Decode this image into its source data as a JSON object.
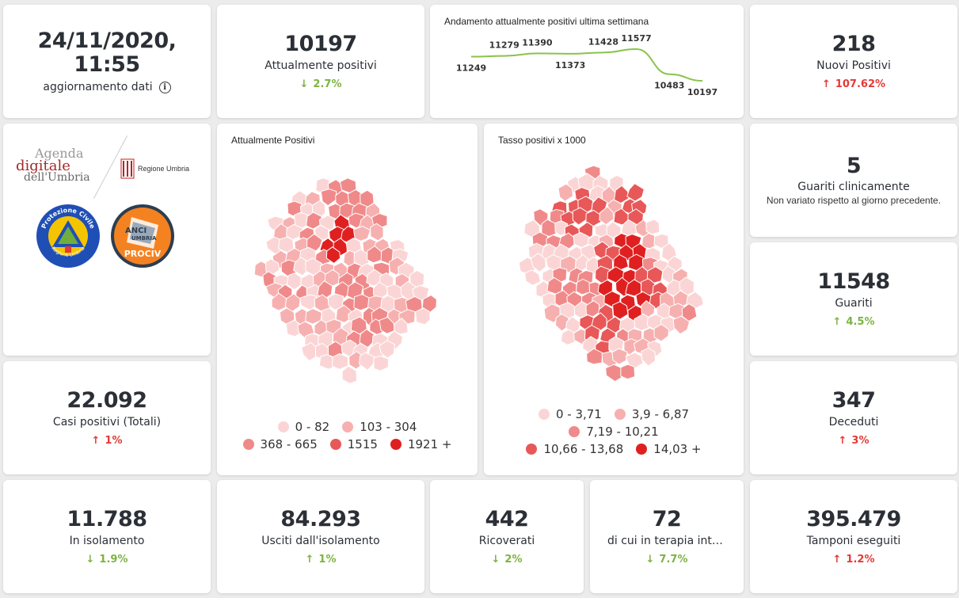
{
  "header": {
    "datetime": "24/11/2020, 11:55",
    "update_label": "aggiornamento dati"
  },
  "positivi": {
    "value": "10197",
    "label": "Attualmente positivi",
    "trend": "2.7%"
  },
  "andamento": {
    "title": "Andamento attualmente positivi ultima settimana",
    "chart_data": {
      "type": "line",
      "x": [
        1,
        2,
        3,
        4,
        5,
        6,
        7,
        8
      ],
      "values": [
        11249,
        11279,
        11390,
        11373,
        11428,
        11577,
        10483,
        10197
      ],
      "labels": [
        "11249",
        "11279",
        "11390",
        "11373",
        "11428",
        "11577",
        "10483",
        "10197"
      ],
      "color": "#8bc34a"
    }
  },
  "nuovi": {
    "value": "218",
    "label": "Nuovi Positivi",
    "trend": "107.62%"
  },
  "logos": {
    "agenda_line1": "Agenda",
    "agenda_line2": "digitale",
    "agenda_line3": "dell'Umbria",
    "regione": "Regione Umbria",
    "protezione_top": "Protezione Civile",
    "protezione_bottom": "Regione Umbria",
    "anci_line1": "ANCI",
    "anci_line2": "UMBRIA",
    "anci_line3": "PROCIV"
  },
  "map1": {
    "title": "Attualmente Positivi",
    "legend": [
      {
        "label": "0 - 82",
        "color": "#fbd5d5"
      },
      {
        "label": "103 - 304",
        "color": "#f7b0b0"
      },
      {
        "label": "368 - 665",
        "color": "#f08a8a"
      },
      {
        "label": "1515",
        "color": "#e85858"
      },
      {
        "label": "1921 +",
        "color": "#e02020"
      }
    ]
  },
  "map2": {
    "title": "Tasso positivi x 1000",
    "legend": [
      {
        "label": "0 - 3,71",
        "color": "#fbd5d5"
      },
      {
        "label": "3,9 - 6,87",
        "color": "#f7b0b0"
      },
      {
        "label": "7,19 - 10,21",
        "color": "#f08a8a"
      },
      {
        "label": "10,66 - 13,68",
        "color": "#e85858"
      },
      {
        "label": "14,03 +",
        "color": "#e02020"
      }
    ]
  },
  "guariti_clin": {
    "value": "5",
    "label": "Guariti clinicamente",
    "note": "Non variato rispetto al giorno precedente."
  },
  "guariti": {
    "value": "11548",
    "label": "Guariti",
    "trend": "4.5%"
  },
  "casi": {
    "value": "22.092",
    "label": "Casi positivi (Totali)",
    "trend": "1%"
  },
  "deceduti": {
    "value": "347",
    "label": "Deceduti",
    "trend": "3%"
  },
  "isolamento": {
    "value": "11.788",
    "label": "In isolamento",
    "trend": "1.9%"
  },
  "usciti": {
    "value": "84.293",
    "label": "Usciti dall'isolamento",
    "trend": "1%"
  },
  "ricoverati": {
    "value": "442",
    "label": "Ricoverati",
    "trend": "2%"
  },
  "terapia": {
    "value": "72",
    "label": "di cui in terapia intensiva",
    "trend": "7.7%"
  },
  "tamponi": {
    "value": "395.479",
    "label": "Tamponi eseguiti",
    "trend": "1.2%"
  }
}
